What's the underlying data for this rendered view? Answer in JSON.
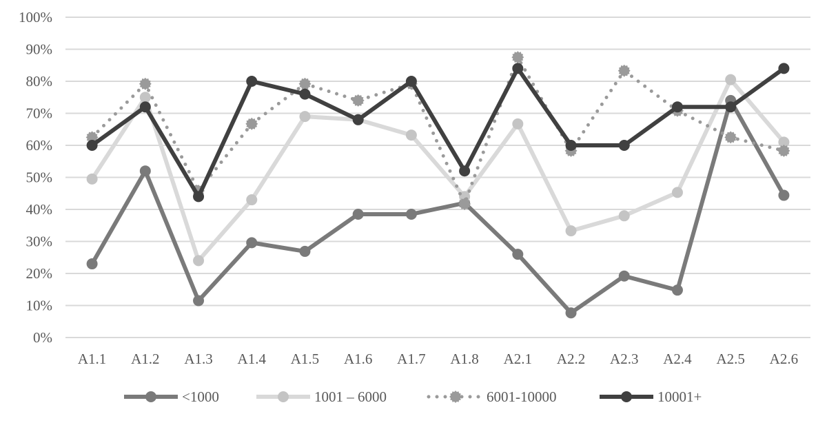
{
  "chart_data": {
    "type": "line",
    "categories": [
      "A1.1",
      "A1.2",
      "A1.3",
      "A1.4",
      "A1.5",
      "A1.6",
      "A1.7",
      "A1.8",
      "A2.1",
      "A2.2",
      "A2.3",
      "A2.4",
      "A2.5",
      "A2.6"
    ],
    "ylim": [
      0,
      100
    ],
    "yticks": [
      "0%",
      "10%",
      "20%",
      "30%",
      "40%",
      "50%",
      "60%",
      "70%",
      "80%",
      "90%",
      "100%"
    ],
    "grid": true,
    "legend_position": "bottom",
    "series": [
      {
        "name": "<1000",
        "color": "#7a7a7a",
        "style": "solid",
        "values": [
          23,
          52,
          11.5,
          29.6,
          26.9,
          38.5,
          38.5,
          42,
          26,
          7.7,
          19.2,
          14.8,
          74,
          44.4
        ]
      },
      {
        "name": "1001 – 6000",
        "color": "#d9d9d9",
        "marker_color": "#c4c4c4",
        "style": "solid",
        "values": [
          49.5,
          75,
          24,
          43,
          69,
          68,
          63.2,
          44,
          66.7,
          33.3,
          38,
          45.3,
          80.5,
          61
        ]
      },
      {
        "name": "6001-10000",
        "color": "#9a9a9a",
        "style": "dotted",
        "values": [
          62.5,
          79.2,
          45.8,
          66.7,
          79.2,
          74,
          79.2,
          41.7,
          87.5,
          58.3,
          83.3,
          70.8,
          62.5,
          58.3
        ]
      },
      {
        "name": "10001+",
        "color": "#404040",
        "style": "solid",
        "values": [
          60,
          72,
          44,
          80,
          76,
          68,
          80,
          52,
          84,
          60,
          60,
          72,
          72,
          84
        ]
      }
    ]
  }
}
